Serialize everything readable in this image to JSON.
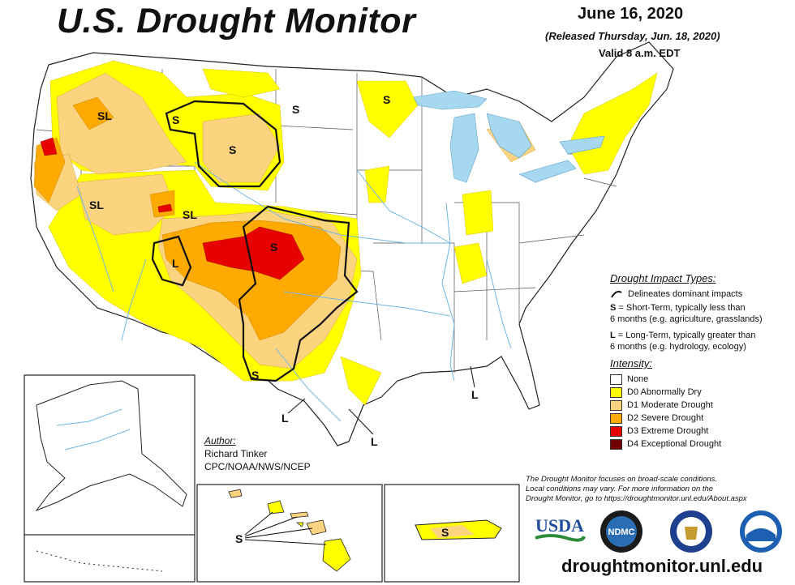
{
  "header": {
    "title": "U.S. Drought Monitor",
    "date": "June 16, 2020",
    "released": "(Released Thursday, Jun. 18, 2020)",
    "valid": "Valid 8 a.m. EDT"
  },
  "colors": {
    "none": "#ffffff",
    "d0": "#ffff00",
    "d1": "#fcd37f",
    "d2": "#ffaa00",
    "d3": "#e60000",
    "d4": "#730000",
    "water": "#a6d8f0",
    "river": "#6fb7e3"
  },
  "legend": {
    "impact_title": "Drought Impact Types:",
    "delineates": "Delineates dominant impacts",
    "s_line1": "= Short-Term, typically less than",
    "s_line2": "6 months (e.g. agriculture, grasslands)",
    "l_line1": "= Long-Term, typically greater than",
    "l_line2": "6 months (e.g. hydrology, ecology)",
    "s_key": "S",
    "l_key": "L",
    "intensity_title": "Intensity:",
    "items": [
      {
        "label": "None"
      },
      {
        "label": "D0 Abnormally Dry"
      },
      {
        "label": "D1 Moderate Drought"
      },
      {
        "label": "D2 Severe Drought"
      },
      {
        "label": "D3 Extreme Drought"
      },
      {
        "label": "D4 Exceptional Drought"
      }
    ]
  },
  "author": {
    "heading": "Author:",
    "name": "Richard Tinker",
    "org": "CPC/NOAA/NWS/NCEP"
  },
  "note": {
    "line1": "The Drought Monitor focuses on broad-scale conditions.",
    "line2": "Local conditions may vary. For more information on the",
    "line3": "Drought Monitor, go to https://droughtmonitor.unl.edu/About.aspx"
  },
  "url": "droughtmonitor.unl.edu",
  "logos": {
    "usda": "USDA",
    "ndmc": "NDMC"
  },
  "map_labels": {
    "sl": "SL",
    "s": "S",
    "l": "L"
  }
}
